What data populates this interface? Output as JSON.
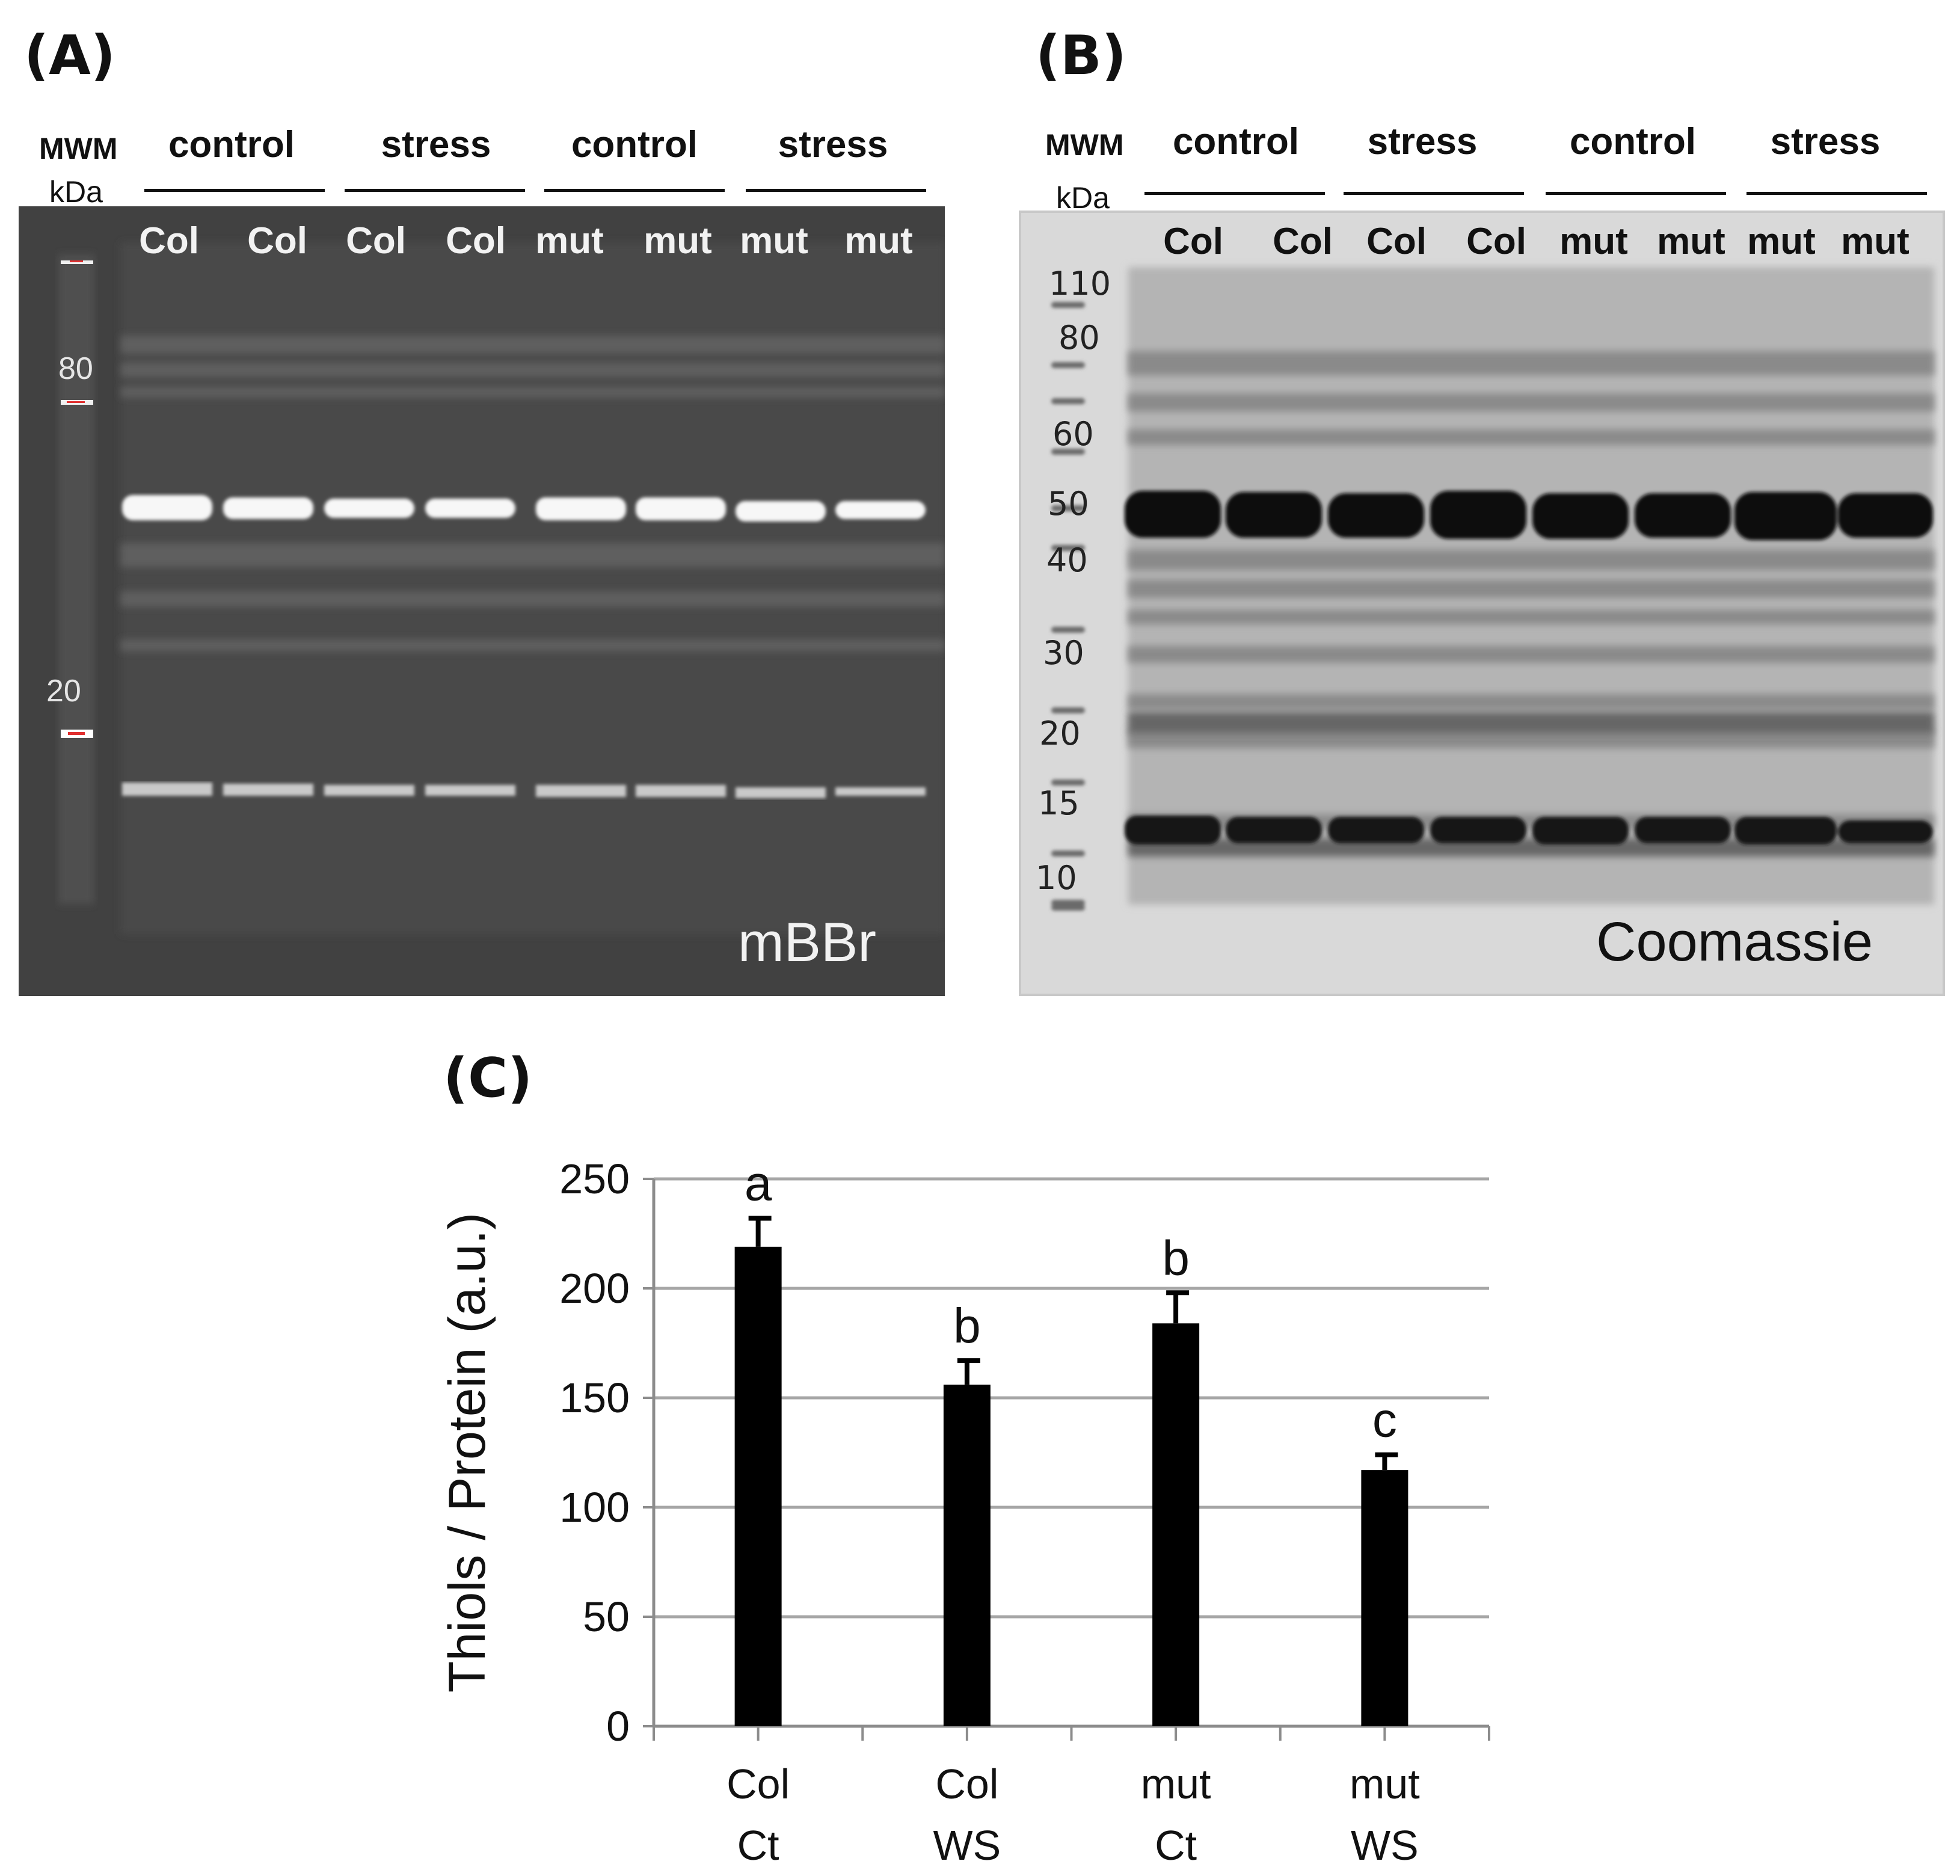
{
  "panels": {
    "a": {
      "label": "(A)",
      "mwm_label": "MWM",
      "kda_label": "kDa",
      "groups": [
        "control",
        "stress",
        "control",
        "stress"
      ],
      "lanes": [
        "Col",
        "Col",
        "Col",
        "Col",
        "mut",
        "mut",
        "mut",
        "mut"
      ],
      "markers": [
        "80",
        "20"
      ],
      "stain": "mBBr"
    },
    "b": {
      "label": "(B)",
      "mwm_label": "MWM",
      "kda_label": "kDa",
      "groups": [
        "control",
        "stress",
        "control",
        "stress"
      ],
      "lanes": [
        "Col",
        "Col",
        "Col",
        "Col",
        "mut",
        "mut",
        "mut",
        "mut"
      ],
      "markers": [
        "110",
        "80",
        "60",
        "50",
        "40",
        "30",
        "20",
        "15",
        "10"
      ],
      "stain": "Coomassie"
    },
    "c": {
      "label": "(C)"
    }
  },
  "chart_data": {
    "type": "bar",
    "categories": [
      [
        "Col",
        "Ct"
      ],
      [
        "Col",
        "WS"
      ],
      [
        "mut",
        "Ct"
      ],
      [
        "mut",
        "WS"
      ]
    ],
    "values": [
      219,
      156,
      184,
      117
    ],
    "errors": [
      13,
      11,
      14,
      7
    ],
    "significance_letters": [
      "a",
      "b",
      "b",
      "c"
    ],
    "ylabel": "Thiols / Protein (a.u.)",
    "ylim": [
      0,
      250
    ],
    "yticks": [
      "0",
      "50",
      "100",
      "150",
      "200",
      "250"
    ],
    "grid": true,
    "bar_color": "#000000",
    "grid_color": "#a6a6a6"
  }
}
